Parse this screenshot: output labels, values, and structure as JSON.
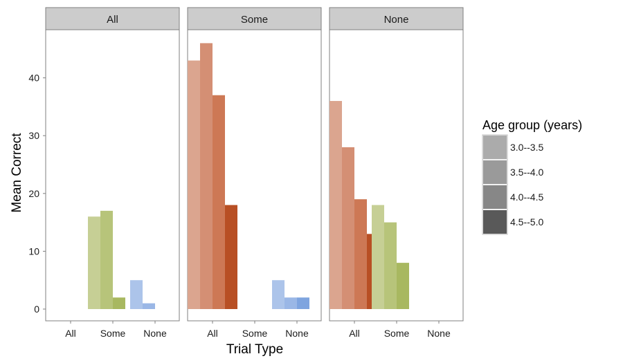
{
  "chart_data": {
    "type": "bar",
    "facet_label": "",
    "facets": [
      "All",
      "Some",
      "None"
    ],
    "categories": [
      "All",
      "Some",
      "None"
    ],
    "xlabel": "Trial Type",
    "ylabel": "Mean Correct",
    "ylim": [
      0,
      48
    ],
    "yticks": [
      0,
      10,
      20,
      30,
      40
    ],
    "legend": {
      "title": "Age group (years)",
      "position": "right",
      "entries": [
        "3.0--3.5",
        "3.5--4.0",
        "4.0--4.5",
        "4.5--5.0"
      ],
      "swatch_colors": [
        "#ababab",
        "#9a9a9a",
        "#878787",
        "#595959"
      ]
    },
    "category_colors": {
      "All": [
        "#dba58f",
        "#d48f74",
        "#cd7855",
        "#b84f24"
      ],
      "Some": [
        "#c6cf95",
        "#b7c47a",
        "#a8b860",
        "#a8b860"
      ],
      "None": [
        "#acc4ea",
        "#9ab7e6",
        "#7ea4df",
        "#7ea4df"
      ]
    },
    "panels": [
      {
        "facet": "All",
        "bars": {
          "All": [],
          "Some": [
            16,
            17,
            2
          ],
          "None": [
            5,
            1
          ]
        }
      },
      {
        "facet": "Some",
        "bars": {
          "All": [
            43,
            46,
            37,
            18
          ],
          "Some": [],
          "None": [
            5,
            2,
            2
          ]
        }
      },
      {
        "facet": "None",
        "bars": {
          "All": [
            36,
            28,
            19,
            13
          ],
          "Some": [
            18,
            15,
            8
          ],
          "None": []
        }
      }
    ],
    "grid": false
  }
}
